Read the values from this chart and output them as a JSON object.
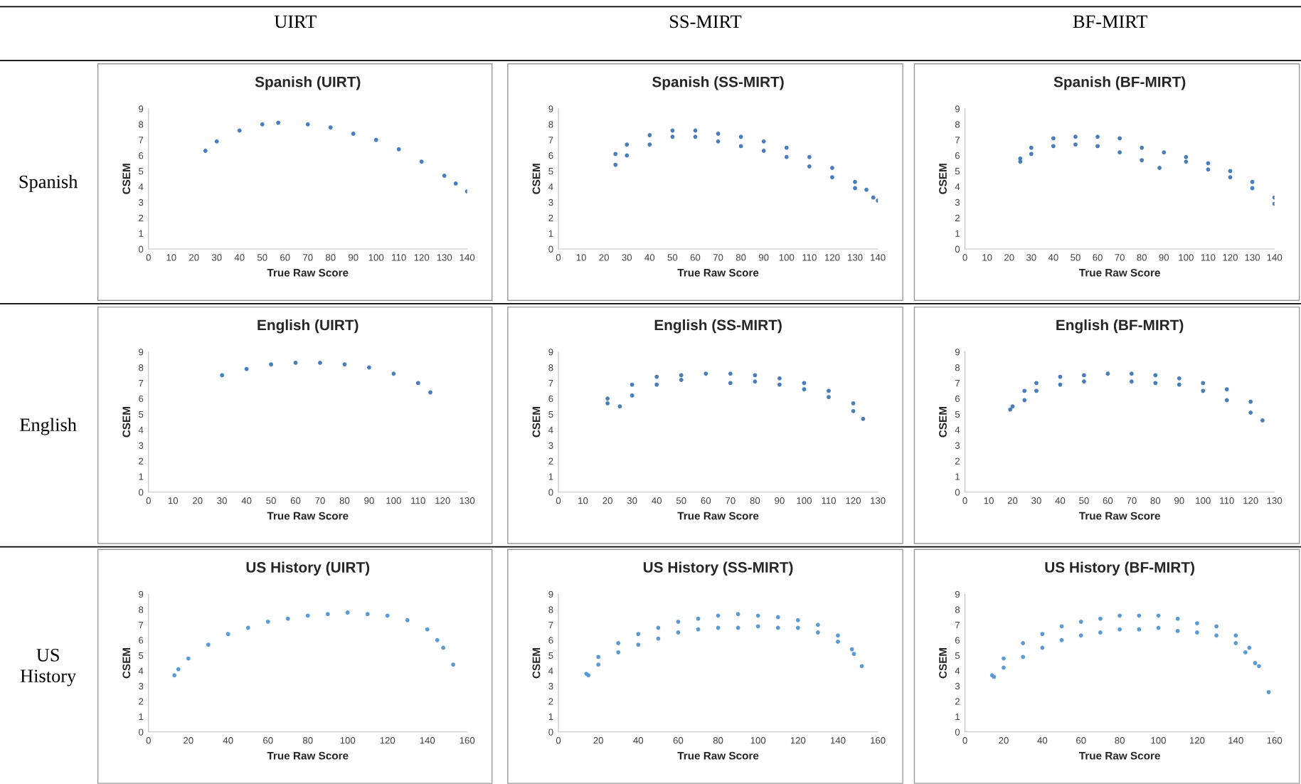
{
  "chart_data": [
    {
      "type": "other",
      "annotations": [
        "UIRT",
        "SS-MIRT",
        "BF-MIRT",
        "Spanish",
        "English",
        "US History"
      ]
    },
    {
      "type": "scatter",
      "title": "Spanish (UIRT)",
      "xlabel": "True Raw Score",
      "ylabel": "CSEM",
      "xlim": [
        0,
        140
      ],
      "xticks": [
        0,
        10,
        20,
        30,
        40,
        50,
        60,
        70,
        80,
        90,
        100,
        110,
        120,
        130,
        140
      ],
      "ylim": [
        0,
        9
      ],
      "yticks": [
        0,
        1,
        2,
        3,
        4,
        5,
        6,
        7,
        8,
        9
      ],
      "grid": false,
      "marker": "circle",
      "series": [
        {
          "color": "#4a7ebb",
          "x": [
            25,
            30,
            40,
            50,
            57,
            70,
            80,
            90,
            100,
            110,
            120,
            130,
            135,
            140
          ],
          "values": [
            6.3,
            6.9,
            7.6,
            8.0,
            8.1,
            8.0,
            7.8,
            7.4,
            7.0,
            6.4,
            5.6,
            4.7,
            4.2,
            3.7
          ]
        }
      ]
    },
    {
      "type": "scatter",
      "title": "Spanish (SS-MIRT)",
      "xlabel": "True Raw Score",
      "ylabel": "CSEM",
      "xlim": [
        0,
        140
      ],
      "xticks": [
        0,
        10,
        20,
        30,
        40,
        50,
        60,
        70,
        80,
        90,
        100,
        110,
        120,
        130,
        140
      ],
      "ylim": [
        0,
        9
      ],
      "yticks": [
        0,
        1,
        2,
        3,
        4,
        5,
        6,
        7,
        8,
        9
      ],
      "grid": false,
      "marker": "circle",
      "series": [
        {
          "color": "#4a7ebb",
          "x": [
            25,
            30,
            40,
            50,
            60,
            70,
            80,
            90,
            100,
            110,
            120,
            130,
            135,
            140,
            25,
            30,
            40,
            50,
            60,
            70,
            80,
            90,
            100,
            110,
            120,
            130,
            138
          ],
          "values": [
            6.1,
            6.7,
            7.3,
            7.6,
            7.6,
            7.4,
            7.2,
            6.9,
            6.5,
            5.9,
            5.2,
            4.3,
            3.8,
            3.1,
            5.4,
            6.0,
            6.7,
            7.2,
            7.2,
            6.9,
            6.6,
            6.3,
            5.9,
            5.3,
            4.6,
            3.9,
            3.3
          ]
        }
      ]
    },
    {
      "type": "scatter",
      "title": "Spanish (BF-MIRT)",
      "xlabel": "True Raw Score",
      "ylabel": "CSEM",
      "xlim": [
        0,
        140
      ],
      "xticks": [
        0,
        10,
        20,
        30,
        40,
        50,
        60,
        70,
        80,
        90,
        100,
        110,
        120,
        130,
        140
      ],
      "ylim": [
        0,
        9
      ],
      "yticks": [
        0,
        1,
        2,
        3,
        4,
        5,
        6,
        7,
        8,
        9
      ],
      "grid": false,
      "marker": "circle",
      "series": [
        {
          "color": "#4a7ebb",
          "x": [
            25,
            30,
            40,
            50,
            60,
            70,
            80,
            90,
            100,
            110,
            120,
            130,
            140,
            25,
            30,
            40,
            50,
            60,
            70,
            80,
            88,
            100,
            110,
            120,
            130,
            140
          ],
          "values": [
            5.8,
            6.5,
            7.1,
            7.2,
            7.2,
            7.1,
            6.5,
            6.2,
            5.9,
            5.5,
            5.0,
            4.3,
            3.3,
            5.6,
            6.1,
            6.6,
            6.7,
            6.6,
            6.2,
            5.7,
            5.2,
            5.6,
            5.1,
            4.6,
            3.9,
            2.9
          ]
        }
      ]
    },
    {
      "type": "scatter",
      "title": "English (UIRT)",
      "xlabel": "True Raw Score",
      "ylabel": "CSEM",
      "xlim": [
        0,
        130
      ],
      "xticks": [
        0,
        10,
        20,
        30,
        40,
        50,
        60,
        70,
        80,
        90,
        100,
        110,
        120,
        130
      ],
      "ylim": [
        0,
        9
      ],
      "yticks": [
        0,
        1,
        2,
        3,
        4,
        5,
        6,
        7,
        8,
        9
      ],
      "grid": false,
      "marker": "circle",
      "series": [
        {
          "color": "#4a7ebb",
          "x": [
            30,
            40,
            50,
            60,
            70,
            80,
            90,
            100,
            110,
            115
          ],
          "values": [
            7.5,
            7.9,
            8.2,
            8.3,
            8.3,
            8.2,
            8.0,
            7.6,
            7.0,
            6.4
          ]
        }
      ]
    },
    {
      "type": "scatter",
      "title": "English (SS-MIRT)",
      "xlabel": "True Raw Score",
      "ylabel": "CSEM",
      "xlim": [
        0,
        130
      ],
      "xticks": [
        0,
        10,
        20,
        30,
        40,
        50,
        60,
        70,
        80,
        90,
        100,
        110,
        120,
        130
      ],
      "ylim": [
        0,
        9
      ],
      "yticks": [
        0,
        1,
        2,
        3,
        4,
        5,
        6,
        7,
        8,
        9
      ],
      "grid": false,
      "marker": "circle",
      "series": [
        {
          "color": "#4a7ebb",
          "x": [
            20,
            30,
            40,
            50,
            60,
            70,
            80,
            90,
            100,
            110,
            120,
            124,
            20,
            25,
            30,
            40,
            50,
            70,
            80,
            90,
            100,
            110,
            120
          ],
          "values": [
            6.0,
            6.9,
            7.4,
            7.5,
            7.6,
            7.6,
            7.5,
            7.3,
            7.0,
            6.5,
            5.7,
            4.7,
            5.7,
            5.5,
            6.2,
            6.9,
            7.2,
            7.0,
            7.1,
            6.9,
            6.6,
            6.1,
            5.2
          ]
        }
      ]
    },
    {
      "type": "scatter",
      "title": "English (BF-MIRT)",
      "xlabel": "True Raw Score",
      "ylabel": "CSEM",
      "xlim": [
        0,
        130
      ],
      "xticks": [
        0,
        10,
        20,
        30,
        40,
        50,
        60,
        70,
        80,
        90,
        100,
        110,
        120,
        130
      ],
      "ylim": [
        0,
        9
      ],
      "yticks": [
        0,
        1,
        2,
        3,
        4,
        5,
        6,
        7,
        8,
        9
      ],
      "grid": false,
      "marker": "circle",
      "series": [
        {
          "color": "#4a7ebb",
          "x": [
            19,
            25,
            30,
            40,
            50,
            60,
            70,
            80,
            90,
            100,
            110,
            120,
            125,
            20,
            25,
            30,
            40,
            50,
            70,
            80,
            90,
            100,
            110,
            120
          ],
          "values": [
            5.3,
            6.5,
            7.0,
            7.4,
            7.5,
            7.6,
            7.6,
            7.5,
            7.3,
            7.0,
            6.6,
            5.8,
            4.6,
            5.5,
            5.9,
            6.5,
            6.9,
            7.1,
            7.1,
            7.0,
            6.9,
            6.5,
            5.9,
            5.1
          ]
        }
      ]
    },
    {
      "type": "scatter",
      "title": "US History (UIRT)",
      "xlabel": "True Raw Score",
      "ylabel": "CSEM",
      "xlim": [
        0,
        160
      ],
      "xticks": [
        0,
        20,
        40,
        60,
        80,
        100,
        120,
        140,
        160
      ],
      "ylim": [
        0,
        9
      ],
      "yticks": [
        0,
        1,
        2,
        3,
        4,
        5,
        6,
        7,
        8,
        9
      ],
      "grid": false,
      "marker": "circle",
      "series": [
        {
          "color": "#5b9bd5",
          "x": [
            13,
            15,
            20,
            30,
            40,
            50,
            60,
            70,
            80,
            90,
            100,
            110,
            120,
            130,
            140,
            145,
            148,
            153
          ],
          "values": [
            3.7,
            4.1,
            4.8,
            5.7,
            6.4,
            6.8,
            7.2,
            7.4,
            7.6,
            7.7,
            7.8,
            7.7,
            7.6,
            7.3,
            6.7,
            6.0,
            5.5,
            4.4
          ]
        }
      ]
    },
    {
      "type": "scatter",
      "title": "US History (SS-MIRT)",
      "xlabel": "True Raw Score",
      "ylabel": "CSEM",
      "xlim": [
        0,
        160
      ],
      "xticks": [
        0,
        20,
        40,
        60,
        80,
        100,
        120,
        140,
        160
      ],
      "ylim": [
        0,
        9
      ],
      "yticks": [
        0,
        1,
        2,
        3,
        4,
        5,
        6,
        7,
        8,
        9
      ],
      "grid": false,
      "marker": "circle",
      "series": [
        {
          "color": "#5b9bd5",
          "x": [
            14,
            20,
            30,
            40,
            50,
            60,
            70,
            80,
            90,
            100,
            110,
            120,
            130,
            140,
            147,
            152,
            15,
            20,
            30,
            40,
            50,
            60,
            70,
            80,
            90,
            100,
            110,
            120,
            130,
            140,
            148
          ],
          "values": [
            3.8,
            4.9,
            5.8,
            6.4,
            6.8,
            7.2,
            7.4,
            7.6,
            7.7,
            7.6,
            7.5,
            7.3,
            7.0,
            6.3,
            5.4,
            4.3,
            3.7,
            4.4,
            5.2,
            5.7,
            6.1,
            6.5,
            6.7,
            6.8,
            6.8,
            6.9,
            6.8,
            6.8,
            6.5,
            5.9,
            5.1
          ]
        }
      ]
    },
    {
      "type": "scatter",
      "title": "US History (BF-MIRT)",
      "xlabel": "True Raw Score",
      "ylabel": "CSEM",
      "xlim": [
        0,
        160
      ],
      "xticks": [
        0,
        20,
        40,
        60,
        80,
        100,
        120,
        140,
        160
      ],
      "ylim": [
        0,
        9
      ],
      "yticks": [
        0,
        1,
        2,
        3,
        4,
        5,
        6,
        7,
        8,
        9
      ],
      "grid": false,
      "marker": "circle",
      "series": [
        {
          "color": "#5b9bd5",
          "x": [
            14,
            20,
            30,
            40,
            50,
            60,
            70,
            80,
            90,
            100,
            110,
            120,
            130,
            140,
            147,
            150,
            157,
            15,
            20,
            30,
            40,
            50,
            60,
            70,
            80,
            90,
            100,
            110,
            120,
            130,
            140,
            145,
            152
          ],
          "values": [
            3.7,
            4.8,
            5.8,
            6.4,
            6.9,
            7.2,
            7.4,
            7.6,
            7.6,
            7.6,
            7.4,
            7.1,
            6.9,
            6.3,
            5.5,
            4.5,
            2.6,
            3.6,
            4.2,
            4.9,
            5.5,
            6.0,
            6.3,
            6.5,
            6.7,
            6.7,
            6.8,
            6.6,
            6.5,
            6.3,
            5.8,
            5.2,
            4.3
          ]
        }
      ]
    }
  ]
}
